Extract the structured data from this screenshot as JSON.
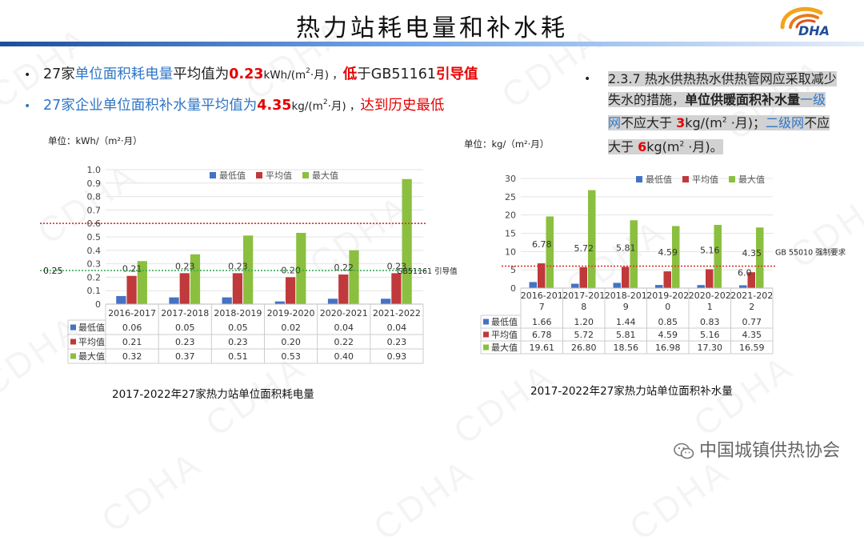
{
  "header": {
    "title": "热力站耗电量和补水耗",
    "logo_text": "DHA"
  },
  "bullets": [
    {
      "prefix": "27家",
      "metric": "单位面积耗电量",
      "mid": "平均值为",
      "value": "0.23",
      "unit_main": "kWh/(m",
      "unit_sup": "2",
      "unit_tail": "·月) ，",
      "low": "低",
      "ref": "于GB51161",
      "ref_tail": "引导值"
    },
    {
      "prefix": "27家企业单位面积补水量",
      "mid": "平均值为",
      "value": "4.35",
      "unit_main": "kg/(m",
      "unit_sup": "2",
      "unit_tail": "·月) ，",
      "remark": "达到历史最低"
    }
  ],
  "standard_note": {
    "p1": "2.3.7 热水供热热水供热管网应采取减少失水的措施，",
    "p2": "单位供暖面积补水量",
    "p3": "一级网",
    "p4": "不应大于 ",
    "p5": "3",
    "p6": "kg/(m",
    "p6_sup": "2",
    "p6_tail": " ·月)；",
    "p7": "二级网",
    "p8": "不应大于 ",
    "p9": "6",
    "p10": "kg(m",
    "p10_sup": "2",
    "p10_tail": " ·月)。"
  },
  "chart_data": [
    {
      "type": "bar",
      "unit_label": "单位：kWh/（m²·月）",
      "categories": [
        "2016-2017",
        "2017-2018",
        "2018-2019",
        "2019-2020",
        "2020-2021",
        "2021-2022"
      ],
      "series": [
        {
          "name": "最低值",
          "color": "#4472c4",
          "values": [
            0.06,
            0.05,
            0.05,
            0.02,
            0.04,
            0.04
          ]
        },
        {
          "name": "平均值",
          "color": "#c0393b",
          "values": [
            0.21,
            0.23,
            0.23,
            0.2,
            0.22,
            0.23
          ]
        },
        {
          "name": "最大值",
          "color": "#8bbf3f",
          "values": [
            0.32,
            0.37,
            0.51,
            0.53,
            0.4,
            0.93
          ]
        }
      ],
      "data_labels": [
        "0.21",
        "0.23",
        "0.23",
        "0.20",
        "0.22",
        "0.23"
      ],
      "ylim": [
        0,
        1.0
      ],
      "yticks": [
        "0",
        "0.1",
        "0.2",
        "0.3",
        "0.4",
        "0.5",
        "0.6",
        "0.7",
        "0.8",
        "0.9",
        "1.0"
      ],
      "reference_lines": [
        {
          "value": 0.6,
          "color": "#e03030",
          "label": ""
        },
        {
          "value": 0.25,
          "color": "#2fa84f",
          "label": "GB51161 引导值",
          "side_label": "0.25"
        }
      ],
      "legend": "top",
      "grid": true,
      "caption": "2017-2022年27家热力站单位面积耗电量"
    },
    {
      "type": "bar",
      "unit_label": "单位：kg/（m²·月）",
      "categories": [
        "2016-2017",
        "2017-2018",
        "2018-2019",
        "2019-2020",
        "2020-2021",
        "2021-2022"
      ],
      "category_lines": [
        [
          "2016-201",
          "7"
        ],
        [
          "2017-201",
          "8"
        ],
        [
          "2018-201",
          "9"
        ],
        [
          "2019-202",
          "0"
        ],
        [
          "2020-202",
          "1"
        ],
        [
          "2021-202",
          "2"
        ]
      ],
      "series": [
        {
          "name": "最低值",
          "color": "#4472c4",
          "values": [
            1.66,
            1.2,
            1.44,
            0.85,
            0.83,
            0.77
          ]
        },
        {
          "name": "平均值",
          "color": "#c0393b",
          "values": [
            6.78,
            5.72,
            5.81,
            4.59,
            5.16,
            4.35
          ]
        },
        {
          "name": "最大值",
          "color": "#8bbf3f",
          "values": [
            19.61,
            26.8,
            18.56,
            16.98,
            17.3,
            16.59
          ]
        }
      ],
      "data_labels": [
        "6.78",
        "5.72",
        "5.81",
        "4.59",
        "5.16",
        "4.35"
      ],
      "table_values": {
        "最低值": [
          "1.66",
          "1.20",
          "1.44",
          "0.85",
          "0.83",
          "0.77"
        ],
        "平均值": [
          "6.78",
          "5.72",
          "5.81",
          "4.59",
          "5.16",
          "4.35"
        ],
        "最大值": [
          "19.61",
          "26.80",
          "18.56",
          "16.98",
          "17.30",
          "16.59"
        ]
      },
      "ylim": [
        0,
        30
      ],
      "yticks": [
        "0",
        "5",
        "10",
        "15",
        "20",
        "25",
        "30"
      ],
      "reference_lines": [
        {
          "value": 6.0,
          "color": "#e03030",
          "label": "GB 55010 强制要求",
          "mark": "6.0"
        }
      ],
      "legend": "top",
      "grid": true,
      "caption": "2017-2022年27家热力站单位面积补水量"
    }
  ],
  "chart1_table": {
    "最低值": [
      "0.06",
      "0.05",
      "0.05",
      "0.02",
      "0.04",
      "0.04"
    ],
    "平均值": [
      "0.21",
      "0.23",
      "0.23",
      "0.20",
      "0.22",
      "0.23"
    ],
    "最大值": [
      "0.32",
      "0.37",
      "0.51",
      "0.53",
      "0.40",
      "0.93"
    ]
  },
  "footer": {
    "source": "中国城镇供热协会"
  },
  "watermark": "CDHA"
}
